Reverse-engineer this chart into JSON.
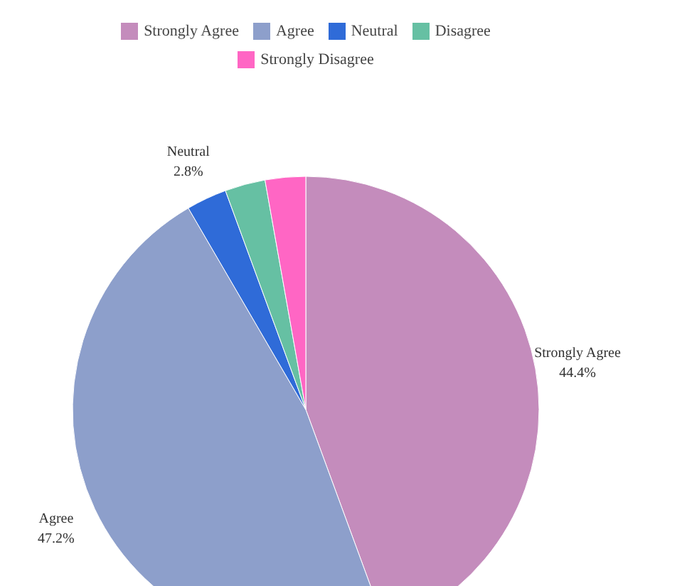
{
  "chart_data": {
    "type": "pie",
    "categories": [
      "Strongly Agree",
      "Agree",
      "Neutral",
      "Disagree",
      "Strongly Disagree"
    ],
    "values": [
      44.4,
      47.2,
      2.8,
      2.8,
      2.8
    ],
    "colors": [
      "#c48cbc",
      "#8d9fcb",
      "#2f6bd8",
      "#66c0a3",
      "#ff66c4"
    ],
    "value_labels": [
      "44.4%",
      "47.2%",
      "2.8%",
      null,
      null
    ],
    "legend": "top"
  }
}
